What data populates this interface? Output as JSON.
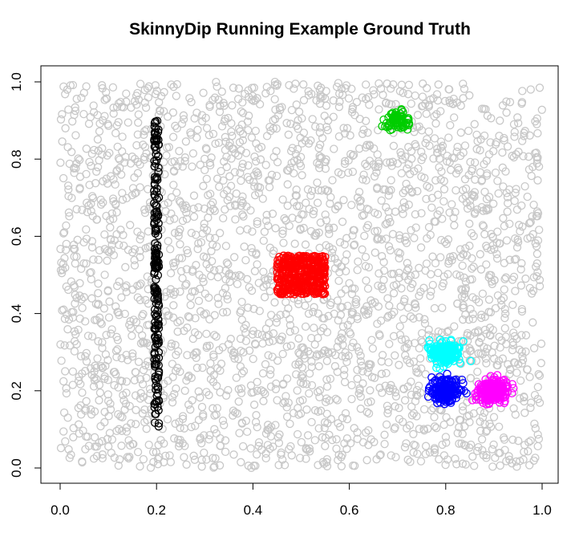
{
  "chart_data": {
    "type": "scatter",
    "title": "SkinnyDip Running Example Ground Truth",
    "xlabel": "",
    "ylabel": "",
    "xlim": [
      0,
      1
    ],
    "ylim": [
      0,
      1
    ],
    "x_ticks": [
      "0.0",
      "0.2",
      "0.4",
      "0.6",
      "0.8",
      "1.0"
    ],
    "y_ticks": [
      "0.0",
      "0.2",
      "0.4",
      "0.6",
      "0.8",
      "1.0"
    ],
    "grid": false,
    "legend": "none",
    "marker": "open-circle",
    "series": [
      {
        "color": "#c8c8c8",
        "points": 2600,
        "x_range": [
          0.0,
          1.0
        ],
        "y_range": [
          0.0,
          1.0
        ]
      },
      {
        "color": "#000000",
        "points": 200,
        "x_range": [
          0.195,
          0.205
        ],
        "y_range": [
          0.1,
          0.9
        ]
      },
      {
        "color": "#ff0000",
        "points": 400,
        "x_range": [
          0.45,
          0.55
        ],
        "y_range": [
          0.45,
          0.55
        ]
      },
      {
        "color": "#00cd00",
        "points": 80,
        "x_center": 0.7,
        "y_center": 0.9,
        "spread": 0.012
      },
      {
        "color": "#00ffff",
        "points": 200,
        "x_center": 0.8,
        "y_center": 0.3,
        "spread": 0.015
      },
      {
        "color": "#0000ff",
        "points": 200,
        "x_center": 0.8,
        "y_center": 0.2,
        "spread": 0.015
      },
      {
        "color": "#ff00ff",
        "points": 200,
        "x_center": 0.9,
        "y_center": 0.2,
        "spread": 0.015
      }
    ]
  }
}
